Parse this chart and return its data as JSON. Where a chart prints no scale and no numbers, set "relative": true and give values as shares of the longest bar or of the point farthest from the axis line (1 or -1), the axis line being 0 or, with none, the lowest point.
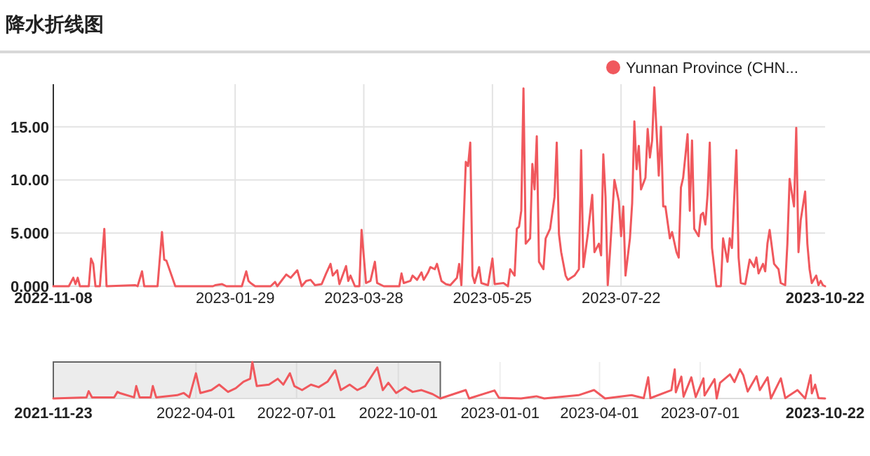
{
  "chart_data": [
    {
      "type": "line",
      "title": "降水折线图",
      "legend": "top right",
      "grid": true,
      "xlim": [
        "2022-11-08",
        "2023-10-22"
      ],
      "xticks": [
        "2022-11-08",
        "2023-01-29",
        "2023-03-28",
        "2023-05-25",
        "2023-07-22",
        "2023-10-22"
      ],
      "ylim": [
        0,
        19
      ],
      "yticks": [
        {
          "value": 0,
          "label": "0.000"
        },
        {
          "value": 5,
          "label": "5.000"
        },
        {
          "value": 10,
          "label": "10.00"
        },
        {
          "value": 15,
          "label": "15.00"
        }
      ],
      "series": [
        {
          "name": "Yunnan Province (CHN...",
          "color": "#f0585d",
          "x": [
            "2022-11-08",
            "2022-11-15",
            "2022-11-17",
            "2022-11-18",
            "2022-11-19",
            "2022-11-20",
            "2022-11-24",
            "2022-11-25",
            "2022-11-26",
            "2022-11-27",
            "2022-11-29",
            "2022-12-01",
            "2022-12-02",
            "2022-12-15",
            "2022-12-16",
            "2022-12-18",
            "2022-12-19",
            "2022-12-25",
            "2022-12-27",
            "2022-12-28",
            "2022-12-29",
            "2023-01-02",
            "2023-01-19",
            "2023-01-20",
            "2023-01-23",
            "2023-01-25",
            "2023-02-01",
            "2023-02-03",
            "2023-02-04",
            "2023-02-05",
            "2023-02-07",
            "2023-02-14",
            "2023-02-16",
            "2023-02-17",
            "2023-02-21",
            "2023-02-23",
            "2023-02-26",
            "2023-02-28",
            "2023-03-02",
            "2023-03-04",
            "2023-03-06",
            "2023-03-09",
            "2023-03-11",
            "2023-03-13",
            "2023-03-14",
            "2023-03-16",
            "2023-03-17",
            "2023-03-20",
            "2023-03-21",
            "2023-03-22",
            "2023-03-24",
            "2023-03-26",
            "2023-03-27",
            "2023-03-29",
            "2023-03-31",
            "2023-04-02",
            "2023-04-03",
            "2023-04-06",
            "2023-04-13",
            "2023-04-14",
            "2023-04-15",
            "2023-04-18",
            "2023-04-19",
            "2023-04-21",
            "2023-04-23",
            "2023-04-24",
            "2023-04-26",
            "2023-04-27",
            "2023-04-29",
            "2023-04-30",
            "2023-05-02",
            "2023-05-04",
            "2023-05-06",
            "2023-05-09",
            "2023-05-10",
            "2023-05-11",
            "2023-05-13",
            "2023-05-14",
            "2023-05-15",
            "2023-05-16",
            "2023-05-17",
            "2023-05-19",
            "2023-05-20",
            "2023-05-23",
            "2023-05-25",
            "2023-05-26",
            "2023-05-30",
            "2023-06-01",
            "2023-06-02",
            "2023-06-04",
            "2023-06-05",
            "2023-06-06",
            "2023-06-07",
            "2023-06-08",
            "2023-06-09",
            "2023-06-11",
            "2023-06-12",
            "2023-06-13",
            "2023-06-14",
            "2023-06-15",
            "2023-06-17",
            "2023-06-18",
            "2023-06-20",
            "2023-06-22",
            "2023-06-23",
            "2023-06-24",
            "2023-06-25",
            "2023-06-27",
            "2023-06-28",
            "2023-07-01",
            "2023-07-03",
            "2023-07-04",
            "2023-07-05",
            "2023-07-07",
            "2023-07-09",
            "2023-07-10",
            "2023-07-12",
            "2023-07-13",
            "2023-07-14",
            "2023-07-15",
            "2023-07-16",
            "2023-07-17",
            "2023-07-19",
            "2023-07-21",
            "2023-07-22",
            "2023-07-23",
            "2023-07-24",
            "2023-07-26",
            "2023-07-27",
            "2023-07-28",
            "2023-07-29",
            "2023-07-30",
            "2023-07-31",
            "2023-08-02",
            "2023-08-03",
            "2023-08-04",
            "2023-08-05",
            "2023-08-06",
            "2023-08-07",
            "2023-08-08",
            "2023-08-09",
            "2023-08-10",
            "2023-08-11",
            "2023-08-13",
            "2023-08-14",
            "2023-08-16",
            "2023-08-17",
            "2023-08-18",
            "2023-08-19",
            "2023-08-21",
            "2023-08-22",
            "2023-08-23",
            "2023-08-24",
            "2023-08-26",
            "2023-08-27",
            "2023-08-28",
            "2023-08-29",
            "2023-08-30",
            "2023-08-31",
            "2023-09-01",
            "2023-09-03",
            "2023-09-05",
            "2023-09-06",
            "2023-09-08",
            "2023-09-09",
            "2023-09-10",
            "2023-09-12",
            "2023-09-13",
            "2023-09-14",
            "2023-09-16",
            "2023-09-18",
            "2023-09-20",
            "2023-09-21",
            "2023-09-22",
            "2023-09-24",
            "2023-09-25",
            "2023-09-26",
            "2023-09-27",
            "2023-09-29",
            "2023-10-01",
            "2023-10-02",
            "2023-10-04",
            "2023-10-05",
            "2023-10-06",
            "2023-10-08",
            "2023-10-09",
            "2023-10-10",
            "2023-10-11",
            "2023-10-13",
            "2023-10-14",
            "2023-10-15",
            "2023-10-16",
            "2023-10-18",
            "2023-10-19",
            "2023-10-20",
            "2023-10-21",
            "2023-10-22"
          ],
          "values": [
            0,
            0,
            0.8,
            0.2,
            0.8,
            0,
            0,
            2.6,
            2.1,
            0,
            0,
            5.4,
            0,
            0.1,
            0,
            1.4,
            0,
            0,
            5.1,
            2.5,
            2.4,
            0,
            0,
            0.1,
            0.2,
            0,
            0,
            1.4,
            0.5,
            0.3,
            0,
            0,
            0.4,
            0,
            1.1,
            0.8,
            1.5,
            0,
            0.5,
            0.6,
            0.1,
            0.2,
            1.2,
            2.1,
            1,
            1.5,
            0.2,
            1.9,
            0.5,
            1,
            0,
            0,
            5.3,
            0.3,
            0.5,
            2.3,
            0.3,
            0,
            0,
            1.2,
            0.3,
            0.5,
            1,
            0.6,
            1.3,
            0.6,
            1.3,
            1.8,
            1.6,
            2.1,
            0.5,
            0.2,
            0.1,
            0.8,
            2.1,
            0.1,
            11.7,
            11.3,
            13.5,
            1,
            0.3,
            1.8,
            0.3,
            0.1,
            2.6,
            0.2,
            0.3,
            0,
            1.6,
            1,
            5.4,
            5.6,
            7.1,
            18.6,
            4,
            4.5,
            11.5,
            9.1,
            14.1,
            2.3,
            1.6,
            4.5,
            5.4,
            8.4,
            13.5,
            4.9,
            3.2,
            1,
            0.6,
            1,
            1.6,
            12.8,
            1.8,
            4.9,
            8.6,
            3.2,
            4,
            2.9,
            12.4,
            8.4,
            0.1,
            3.2,
            10,
            8,
            4.7,
            7.5,
            1,
            4.5,
            7.8,
            15.5,
            11,
            13.2,
            9.1,
            10.2,
            14.8,
            12.1,
            13.7,
            18.7,
            14.6,
            10.4,
            15,
            7.5,
            7.5,
            4.5,
            5.1,
            3.2,
            2.7,
            9.3,
            10.2,
            14.3,
            7.1,
            13.7,
            5.4,
            4.7,
            6.7,
            6.9,
            5.8,
            8.6,
            13.5,
            3.6,
            0,
            0,
            4.5,
            2.3,
            4.5,
            3.6,
            12.8,
            2.7,
            0.3,
            0.2,
            2.5,
            1.8,
            2.7,
            1.2,
            2.1,
            1.4,
            4,
            5.3,
            2.1,
            1.6,
            0.3,
            0.1,
            4,
            10.1,
            7.5,
            14.9,
            3.2,
            6.2,
            8.9,
            4,
            1.6,
            0.3,
            1,
            0.1,
            0.5,
            0.1,
            0
          ]
        }
      ]
    },
    {
      "type": "line",
      "relative": true,
      "grid": "x",
      "xlim": [
        "2021-11-23",
        "2023-10-22"
      ],
      "xticks": [
        "2021-11-23",
        "2022-04-01",
        "2022-07-01",
        "2022-10-01",
        "2023-01-01",
        "2023-04-01",
        "2023-07-01",
        "2023-10-22"
      ],
      "bands": [
        {
          "axis": "x",
          "from": "2021-11-23",
          "to": "2022-11-08",
          "color": "#666666"
        }
      ],
      "series": [
        {
          "color": "#f0585d",
          "x": [
            "2021-11-23",
            "2021-12-23",
            "2021-12-25",
            "2021-12-28",
            "2022-01-17",
            "2022-01-20",
            "2022-01-22",
            "2022-02-04",
            "2022-02-06",
            "2022-02-09",
            "2022-02-19",
            "2022-02-21",
            "2022-02-24",
            "2022-03-15",
            "2022-03-21",
            "2022-03-26",
            "2022-04-01",
            "2022-04-05",
            "2022-04-15",
            "2022-04-22",
            "2022-04-30",
            "2022-05-07",
            "2022-05-14",
            "2022-05-20",
            "2022-05-22",
            "2022-05-26",
            "2022-06-06",
            "2022-06-14",
            "2022-06-19",
            "2022-06-25",
            "2022-06-29",
            "2022-07-06",
            "2022-07-14",
            "2022-07-21",
            "2022-07-29",
            "2022-08-05",
            "2022-08-10",
            "2022-08-18",
            "2022-08-25",
            "2022-09-01",
            "2022-09-12",
            "2022-09-17",
            "2022-09-22",
            "2022-09-29",
            "2022-10-07",
            "2022-10-14",
            "2022-10-22",
            "2022-11-01",
            "2022-11-08",
            "2022-12-01",
            "2022-12-04",
            "2022-12-27",
            "2022-12-31",
            "2023-01-20",
            "2023-02-03",
            "2023-02-10",
            "2023-03-13",
            "2023-03-27",
            "2023-04-06",
            "2023-04-30",
            "2023-05-11",
            "2023-05-15",
            "2023-05-17",
            "2023-06-05",
            "2023-06-08",
            "2023-06-09",
            "2023-06-14",
            "2023-06-16",
            "2023-06-23",
            "2023-06-27",
            "2023-07-04",
            "2023-07-05",
            "2023-07-14",
            "2023-07-16",
            "2023-07-19",
            "2023-07-28",
            "2023-08-01",
            "2023-08-06",
            "2023-08-09",
            "2023-08-13",
            "2023-08-21",
            "2023-08-24",
            "2023-08-31",
            "2023-09-03",
            "2023-09-12",
            "2023-09-16",
            "2023-09-27",
            "2023-10-04",
            "2023-10-09",
            "2023-10-10",
            "2023-10-13",
            "2023-10-16",
            "2023-10-22"
          ],
          "values": [
            0,
            0.03,
            0.2,
            0.03,
            0.03,
            0.18,
            0.15,
            0.03,
            0.34,
            0.03,
            0.03,
            0.34,
            0.03,
            0.09,
            0.15,
            0.03,
            0.69,
            0.15,
            0.23,
            0.38,
            0.18,
            0.28,
            0.46,
            0.54,
            1,
            0.34,
            0.38,
            0.54,
            0.38,
            0.69,
            0.34,
            0.23,
            0.38,
            0.31,
            0.46,
            0.77,
            0.23,
            0.38,
            0.23,
            0.34,
            0.85,
            0.23,
            0.43,
            0.15,
            0.31,
            0.18,
            0.23,
            0.12,
            0,
            0.23,
            0,
            0.22,
            0.02,
            0,
            0.06,
            0,
            0.09,
            0.23,
            0,
            0.09,
            0.01,
            0.58,
            0.01,
            0.23,
            0.8,
            0.17,
            0.6,
            0.05,
            0.58,
            0.04,
            0.55,
            0.08,
            0.53,
            0,
            0.43,
            0.66,
            0.45,
            0.8,
            0.64,
            0.19,
            0.61,
            0.23,
            0.58,
            0,
            0.55,
            0.01,
            0.23,
            0,
            0.64,
            0.14,
            0.38,
            0.01,
            0
          ]
        }
      ]
    }
  ]
}
